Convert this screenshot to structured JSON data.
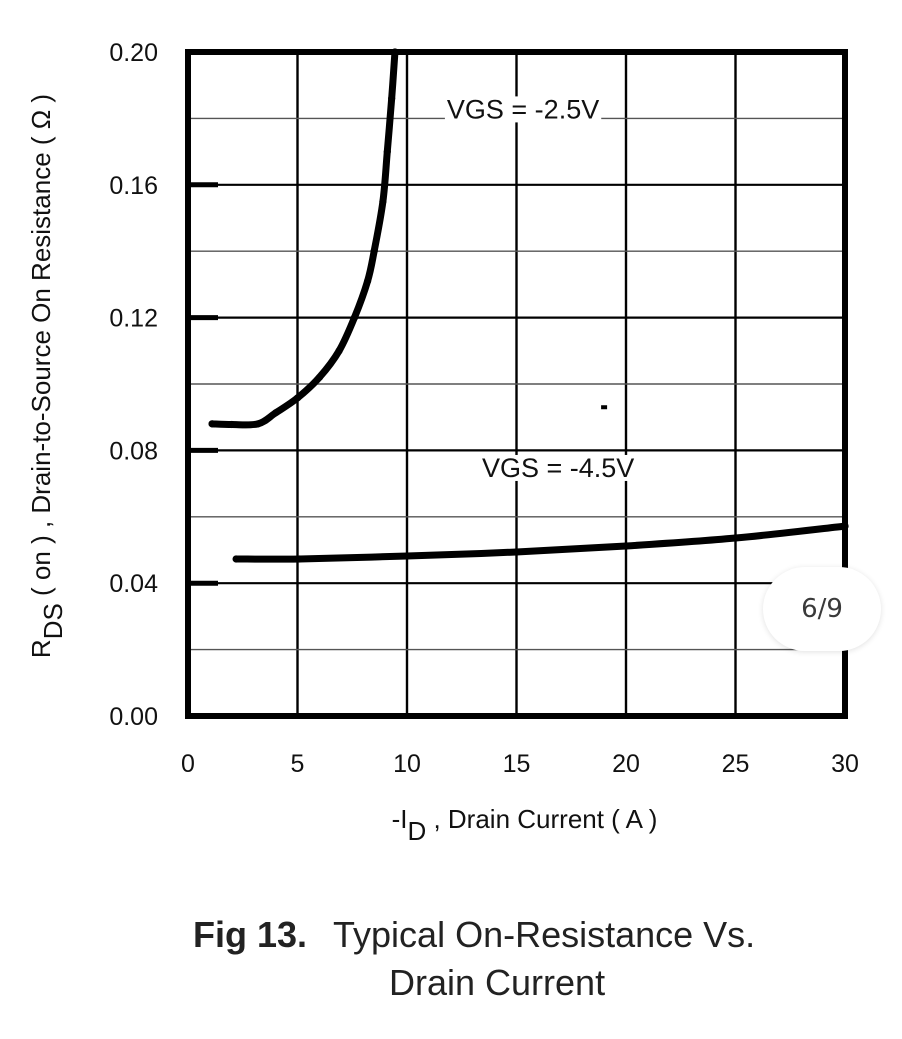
{
  "chart_data": {
    "type": "line",
    "title": "Typical On-Resistance Vs. Drain Current",
    "figure_label": "Fig 13.",
    "caption_line1": "Typical On-Resistance Vs.",
    "caption_line2": "Drain Current",
    "xlabel_prefix": "-I",
    "xlabel_sub": "D",
    "xlabel_suffix": " , Drain Current ( A )",
    "ylabel_prefix": "R",
    "ylabel_sub": "DS",
    "ylabel_suffix": " ( on ) , Drain-to-Source On Resistance ( Ω )",
    "xlim": [
      0,
      30
    ],
    "ylim": [
      0,
      0.2
    ],
    "xticks": [
      0,
      5,
      10,
      15,
      20,
      25,
      30
    ],
    "xtick_labels": [
      "0",
      "5",
      "10",
      "15",
      "20",
      "25",
      "30"
    ],
    "yticks": [
      0,
      0.04,
      0.08,
      0.12,
      0.16,
      0.2
    ],
    "ytick_labels": [
      "0.00",
      "0.04",
      "0.08",
      "0.12",
      "0.16",
      "0.20"
    ],
    "y_minor_gridlines": [
      0.02,
      0.06,
      0.1,
      0.14,
      0.18
    ],
    "grid": true,
    "legend": "none (inline annotations)",
    "series": [
      {
        "name": "VGS = -2.5V",
        "x": [
          1.1,
          2.0,
          3.2,
          4.0,
          5.0,
          6.0,
          6.9,
          7.6,
          8.2,
          8.5,
          8.9,
          9.1,
          9.3,
          9.45
        ],
        "y": [
          0.088,
          0.0878,
          0.088,
          0.0913,
          0.0958,
          0.102,
          0.11,
          0.12,
          0.131,
          0.14,
          0.155,
          0.17,
          0.186,
          0.2
        ]
      },
      {
        "name": "VGS = -4.5V",
        "x": [
          2.2,
          5.1,
          10,
          15,
          20,
          25,
          30
        ],
        "y": [
          0.0473,
          0.0473,
          0.0482,
          0.0494,
          0.0512,
          0.0536,
          0.0572
        ]
      }
    ],
    "annotations": [
      {
        "text": "VGS = -2.5V",
        "x": 15.3,
        "y": 0.18
      },
      {
        "text": "VGS = -4.5V",
        "x": 16.9,
        "y": 0.072
      }
    ],
    "stray_marks": [
      {
        "x": 19.0,
        "y": 0.093
      }
    ],
    "color": "#000000"
  },
  "viewer": {
    "page_indicator": "6/9"
  }
}
